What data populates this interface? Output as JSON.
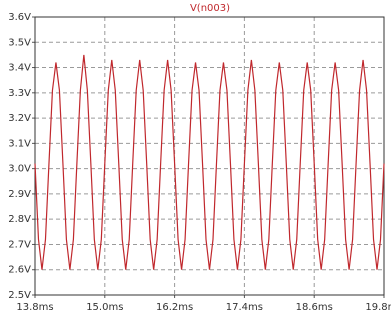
{
  "chart_data": {
    "type": "line",
    "title": "V(n003)",
    "x": [
      13.8,
      13.86,
      13.92,
      13.98,
      14.04,
      14.1,
      14.16,
      14.22,
      14.28,
      14.34,
      14.4,
      14.46,
      14.52,
      14.58,
      14.64,
      14.7,
      14.76,
      14.82,
      14.88,
      14.94,
      15.0,
      15.06,
      15.12,
      15.18,
      15.24,
      15.3,
      15.36,
      15.42,
      15.48,
      15.54,
      15.6,
      15.66,
      15.72,
      15.78,
      15.84,
      15.9,
      15.96,
      16.02,
      16.08,
      16.14,
      16.2,
      16.26,
      16.32,
      16.38,
      16.44,
      16.5,
      16.56,
      16.62,
      16.68,
      16.74,
      16.8,
      16.86,
      16.92,
      16.98,
      17.04,
      17.1,
      17.16,
      17.22,
      17.28,
      17.34,
      17.4,
      17.46,
      17.52,
      17.58,
      17.64,
      17.7,
      17.76,
      17.82,
      17.88,
      17.94,
      18.0,
      18.06,
      18.12,
      18.18,
      18.24,
      18.3,
      18.36,
      18.42,
      18.48,
      18.54,
      18.6,
      18.66,
      18.72,
      18.78,
      18.84,
      18.9,
      18.96,
      19.02,
      19.08,
      19.14,
      19.2,
      19.26,
      19.32,
      19.38,
      19.44,
      19.5,
      19.56,
      19.62,
      19.68,
      19.74,
      19.8
    ],
    "series": [
      {
        "name": "V(n003)",
        "color": "#c0282d",
        "values": [
          3.02,
          2.72,
          2.6,
          2.72,
          3.02,
          3.31,
          3.42,
          3.31,
          3.02,
          2.72,
          2.6,
          2.72,
          3.02,
          3.31,
          3.45,
          3.31,
          3.02,
          2.72,
          2.6,
          2.72,
          3.02,
          3.31,
          3.43,
          3.31,
          3.02,
          2.72,
          2.6,
          2.72,
          3.02,
          3.31,
          3.43,
          3.31,
          3.02,
          2.72,
          2.6,
          2.72,
          3.02,
          3.31,
          3.43,
          3.31,
          3.02,
          2.72,
          2.6,
          2.72,
          3.02,
          3.31,
          3.42,
          3.31,
          3.02,
          2.72,
          2.6,
          2.72,
          3.02,
          3.31,
          3.42,
          3.31,
          3.02,
          2.72,
          2.6,
          2.72,
          3.02,
          3.31,
          3.43,
          3.31,
          3.02,
          2.72,
          2.6,
          2.72,
          3.02,
          3.31,
          3.42,
          3.31,
          3.02,
          2.72,
          2.6,
          2.72,
          3.02,
          3.31,
          3.42,
          3.31,
          3.02,
          2.72,
          2.6,
          2.72,
          3.02,
          3.31,
          3.42,
          3.31,
          3.02,
          2.72,
          2.6,
          2.72,
          3.02,
          3.31,
          3.43,
          3.31,
          3.02,
          2.72,
          2.6,
          2.72,
          3.02
        ]
      }
    ],
    "xlim": [
      13.8,
      19.8
    ],
    "xticks": [
      {
        "value": 13.8,
        "label": "13.8ms"
      },
      {
        "value": 15.0,
        "label": "15.0ms"
      },
      {
        "value": 16.2,
        "label": "16.2ms"
      },
      {
        "value": 17.4,
        "label": "17.4ms"
      },
      {
        "value": 18.6,
        "label": "18.6ms"
      },
      {
        "value": 19.8,
        "label": "19.8ms"
      }
    ],
    "ylim": [
      2.5,
      3.6
    ],
    "yticks": [
      {
        "value": 2.5,
        "label": "2.5V"
      },
      {
        "value": 2.6,
        "label": "2.6V"
      },
      {
        "value": 2.7,
        "label": "2.7V"
      },
      {
        "value": 2.8,
        "label": "2.8V"
      },
      {
        "value": 2.9,
        "label": "2.9V"
      },
      {
        "value": 3.0,
        "label": "3.0V"
      },
      {
        "value": 3.1,
        "label": "3.1V"
      },
      {
        "value": 3.2,
        "label": "3.2V"
      },
      {
        "value": 3.3,
        "label": "3.3V"
      },
      {
        "value": 3.4,
        "label": "3.4V"
      },
      {
        "value": 3.5,
        "label": "3.5V"
      },
      {
        "value": 3.6,
        "label": "3.6V"
      }
    ],
    "grid": true
  }
}
